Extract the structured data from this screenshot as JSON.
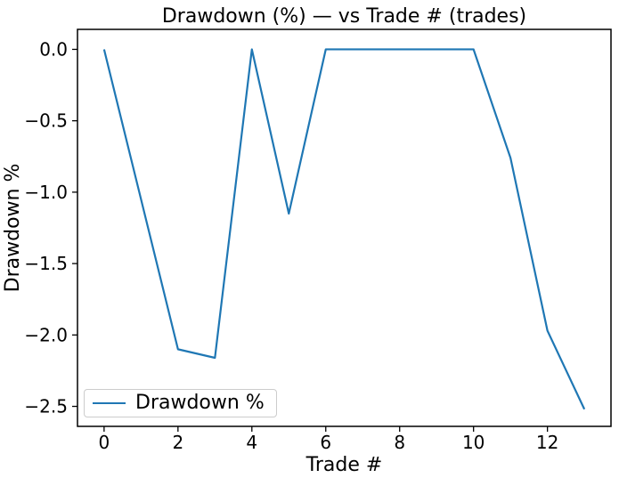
{
  "chart_data": {
    "type": "line",
    "title": "Drawdown (%) — vs Trade # (trades)",
    "xlabel": "Trade #",
    "ylabel": "Drawdown %",
    "x": [
      0,
      1,
      2,
      3,
      4,
      5,
      6,
      7,
      8,
      9,
      10,
      11,
      12,
      13
    ],
    "series": [
      {
        "name": "Drawdown %",
        "color": "#1f77b4",
        "values": [
          0.0,
          -1.05,
          -2.1,
          -2.16,
          0.0,
          -1.15,
          0.0,
          0.0,
          0.0,
          0.0,
          0.0,
          -0.76,
          -1.97,
          -2.52
        ]
      }
    ],
    "xticks": {
      "values": [
        0,
        2,
        4,
        6,
        8,
        10,
        12
      ],
      "labels": [
        "0",
        "2",
        "4",
        "6",
        "8",
        "10",
        "12"
      ]
    },
    "yticks": {
      "values": [
        0.0,
        -0.5,
        -1.0,
        -1.5,
        -2.0,
        -2.5
      ],
      "labels": [
        "0.0",
        "−0.5",
        "−1.0",
        "−1.5",
        "−2.0",
        "−2.5"
      ]
    },
    "xlim": [
      -0.72,
      13.72
    ],
    "ylim": [
      -2.64,
      0.14
    ],
    "grid": false,
    "legend": {
      "label": "Drawdown %",
      "position": "lower-left"
    }
  },
  "colors": {
    "line": "#1f77b4",
    "spines": "#000000",
    "legend_border": "#cccccc",
    "background": "#ffffff"
  }
}
